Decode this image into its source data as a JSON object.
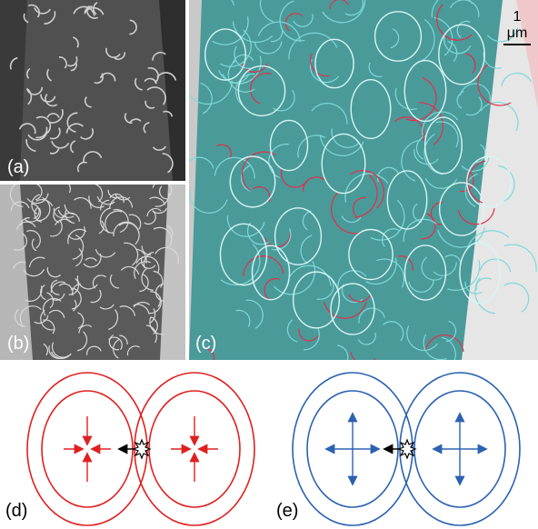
{
  "panels": {
    "a": {
      "label": "(a)"
    },
    "b": {
      "label": "(b)"
    },
    "c": {
      "label": "(c)",
      "scale_bar": "1 μm"
    },
    "d": {
      "label": "(d)",
      "line_color": "#e02020"
    },
    "e": {
      "label": "(e)",
      "line_color": "#2b62b0"
    }
  },
  "colors": {
    "micrograph_gray": "#505050",
    "overlay_cyan": "#3fb8b8",
    "overlay_red": "#e0304a",
    "circle_outline": "#d8f4f4"
  }
}
